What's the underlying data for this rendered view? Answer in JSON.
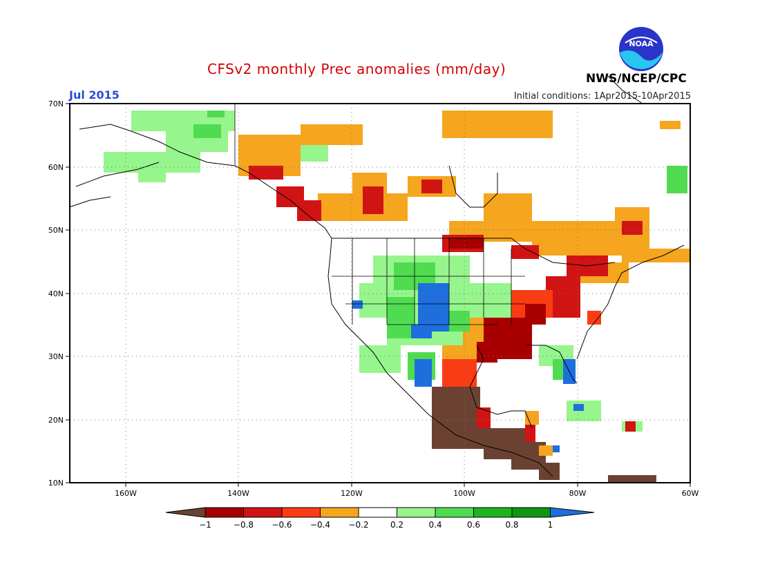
{
  "header": {
    "title": "CFSv2 monthly Prec anomalies (mm/day)",
    "month": "Jul 2015",
    "initial_conditions": "Initial conditions: 1Apr2015-10Apr2015",
    "agency": "NWS/NCEP/CPC",
    "logo_text": "NOAA"
  },
  "map": {
    "lon_range": [
      -170,
      -60
    ],
    "lat_range": [
      10,
      70
    ],
    "lat_ticks": [
      "70N",
      "60N",
      "50N",
      "40N",
      "30N",
      "20N",
      "10N"
    ],
    "lon_ticks": [
      "160W",
      "140W",
      "120W",
      "100W",
      "80W",
      "60W"
    ]
  },
  "colorbar": {
    "labels": [
      "-1",
      "-0.8",
      "-0.6",
      "-0.4",
      "-0.2",
      "0.2",
      "0.4",
      "0.6",
      "0.8",
      "1"
    ],
    "colors": [
      "#6b4231",
      "#a80000",
      "#d01414",
      "#fa3c14",
      "#f5a51e",
      "#ffffff",
      "#96f58c",
      "#50dc50",
      "#1eb41e",
      "#0f960f",
      "#1e6ede"
    ]
  },
  "regions": [
    {
      "name": "alaska-wet",
      "color": "#96f58c"
    },
    {
      "name": "canada-dry",
      "color": "#f5a51e"
    },
    {
      "name": "pacific-nw-dry",
      "color": "#d01414"
    },
    {
      "name": "southwest-wet",
      "color": "#1e6ede"
    },
    {
      "name": "texas-dry",
      "color": "#a80000"
    },
    {
      "name": "mexico-very-dry",
      "color": "#6b4231"
    },
    {
      "name": "florida-wet",
      "color": "#1e6ede"
    },
    {
      "name": "northeast-dry",
      "color": "#fa3c14"
    }
  ]
}
